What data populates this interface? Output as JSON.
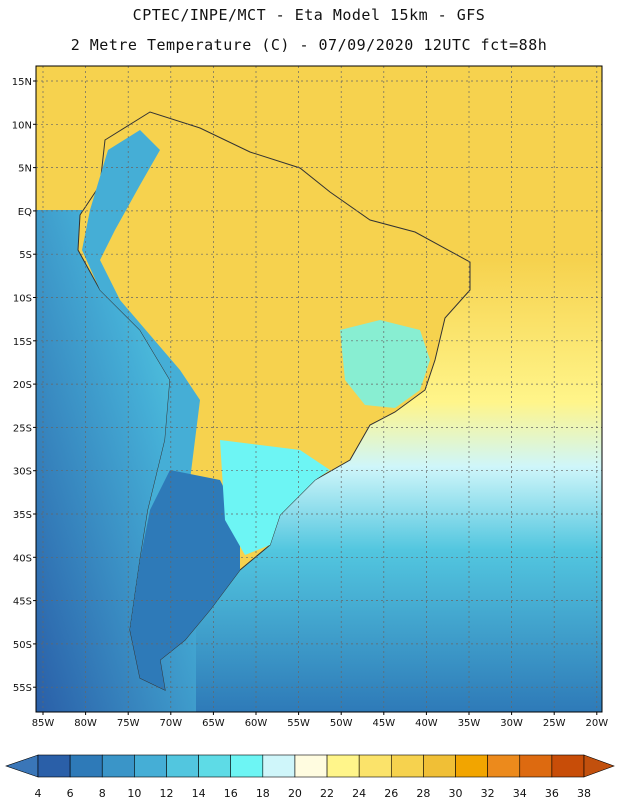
{
  "header": {
    "line1": "CPTEC/INPE/MCT -  Eta Model 15km - GFS",
    "line2": "2 Metre Temperature (C) - 07/09/2020 12UTC fct=88h"
  },
  "axes": {
    "lat_labels": [
      "15N",
      "10N",
      "5N",
      "EQ",
      "5S",
      "10S",
      "15S",
      "20S",
      "25S",
      "30S",
      "35S",
      "40S",
      "45S",
      "50S",
      "55S"
    ],
    "lon_labels": [
      "85W",
      "80W",
      "75W",
      "70W",
      "65W",
      "60W",
      "55W",
      "50W",
      "45W",
      "40W",
      "35W",
      "30W",
      "25W",
      "20W"
    ]
  },
  "colorbar": {
    "labels": [
      "4",
      "6",
      "8",
      "10",
      "12",
      "14",
      "16",
      "18",
      "20",
      "22",
      "24",
      "26",
      "28",
      "30",
      "32",
      "34",
      "36",
      "38"
    ],
    "colors": [
      "#2a5fa8",
      "#2e7ab8",
      "#3a95c8",
      "#45aed6",
      "#52c6df",
      "#5edbe6",
      "#6df5f4",
      "#cff6fa",
      "#fffce0",
      "#fff58a",
      "#fbe36a",
      "#f6d24e",
      "#f0bf36",
      "#f2a500",
      "#ec8a1c",
      "#dd6a10",
      "#c84d08"
    ],
    "low_color": "#3a76b8",
    "high_color": "#c2500d"
  },
  "map": {
    "ocean_colors": {
      "pacific_deep": "#2a5fa8",
      "pacific_mid": "#45aed6",
      "pacific_warm": "#5edbe6",
      "atlantic_south": "#2e7ab8",
      "atlantic_mid": "#52c6df",
      "atlantic_light": "#cff6fa",
      "tropical": "#f6d24e",
      "equatorial_light": "#fff58a"
    },
    "land_colors": {
      "hot": "#f0bf36",
      "warm": "#f6d24e",
      "andes_cold": "#45aed6",
      "patagonia": "#2e7ab8",
      "cool_south": "#6df5f4"
    }
  }
}
